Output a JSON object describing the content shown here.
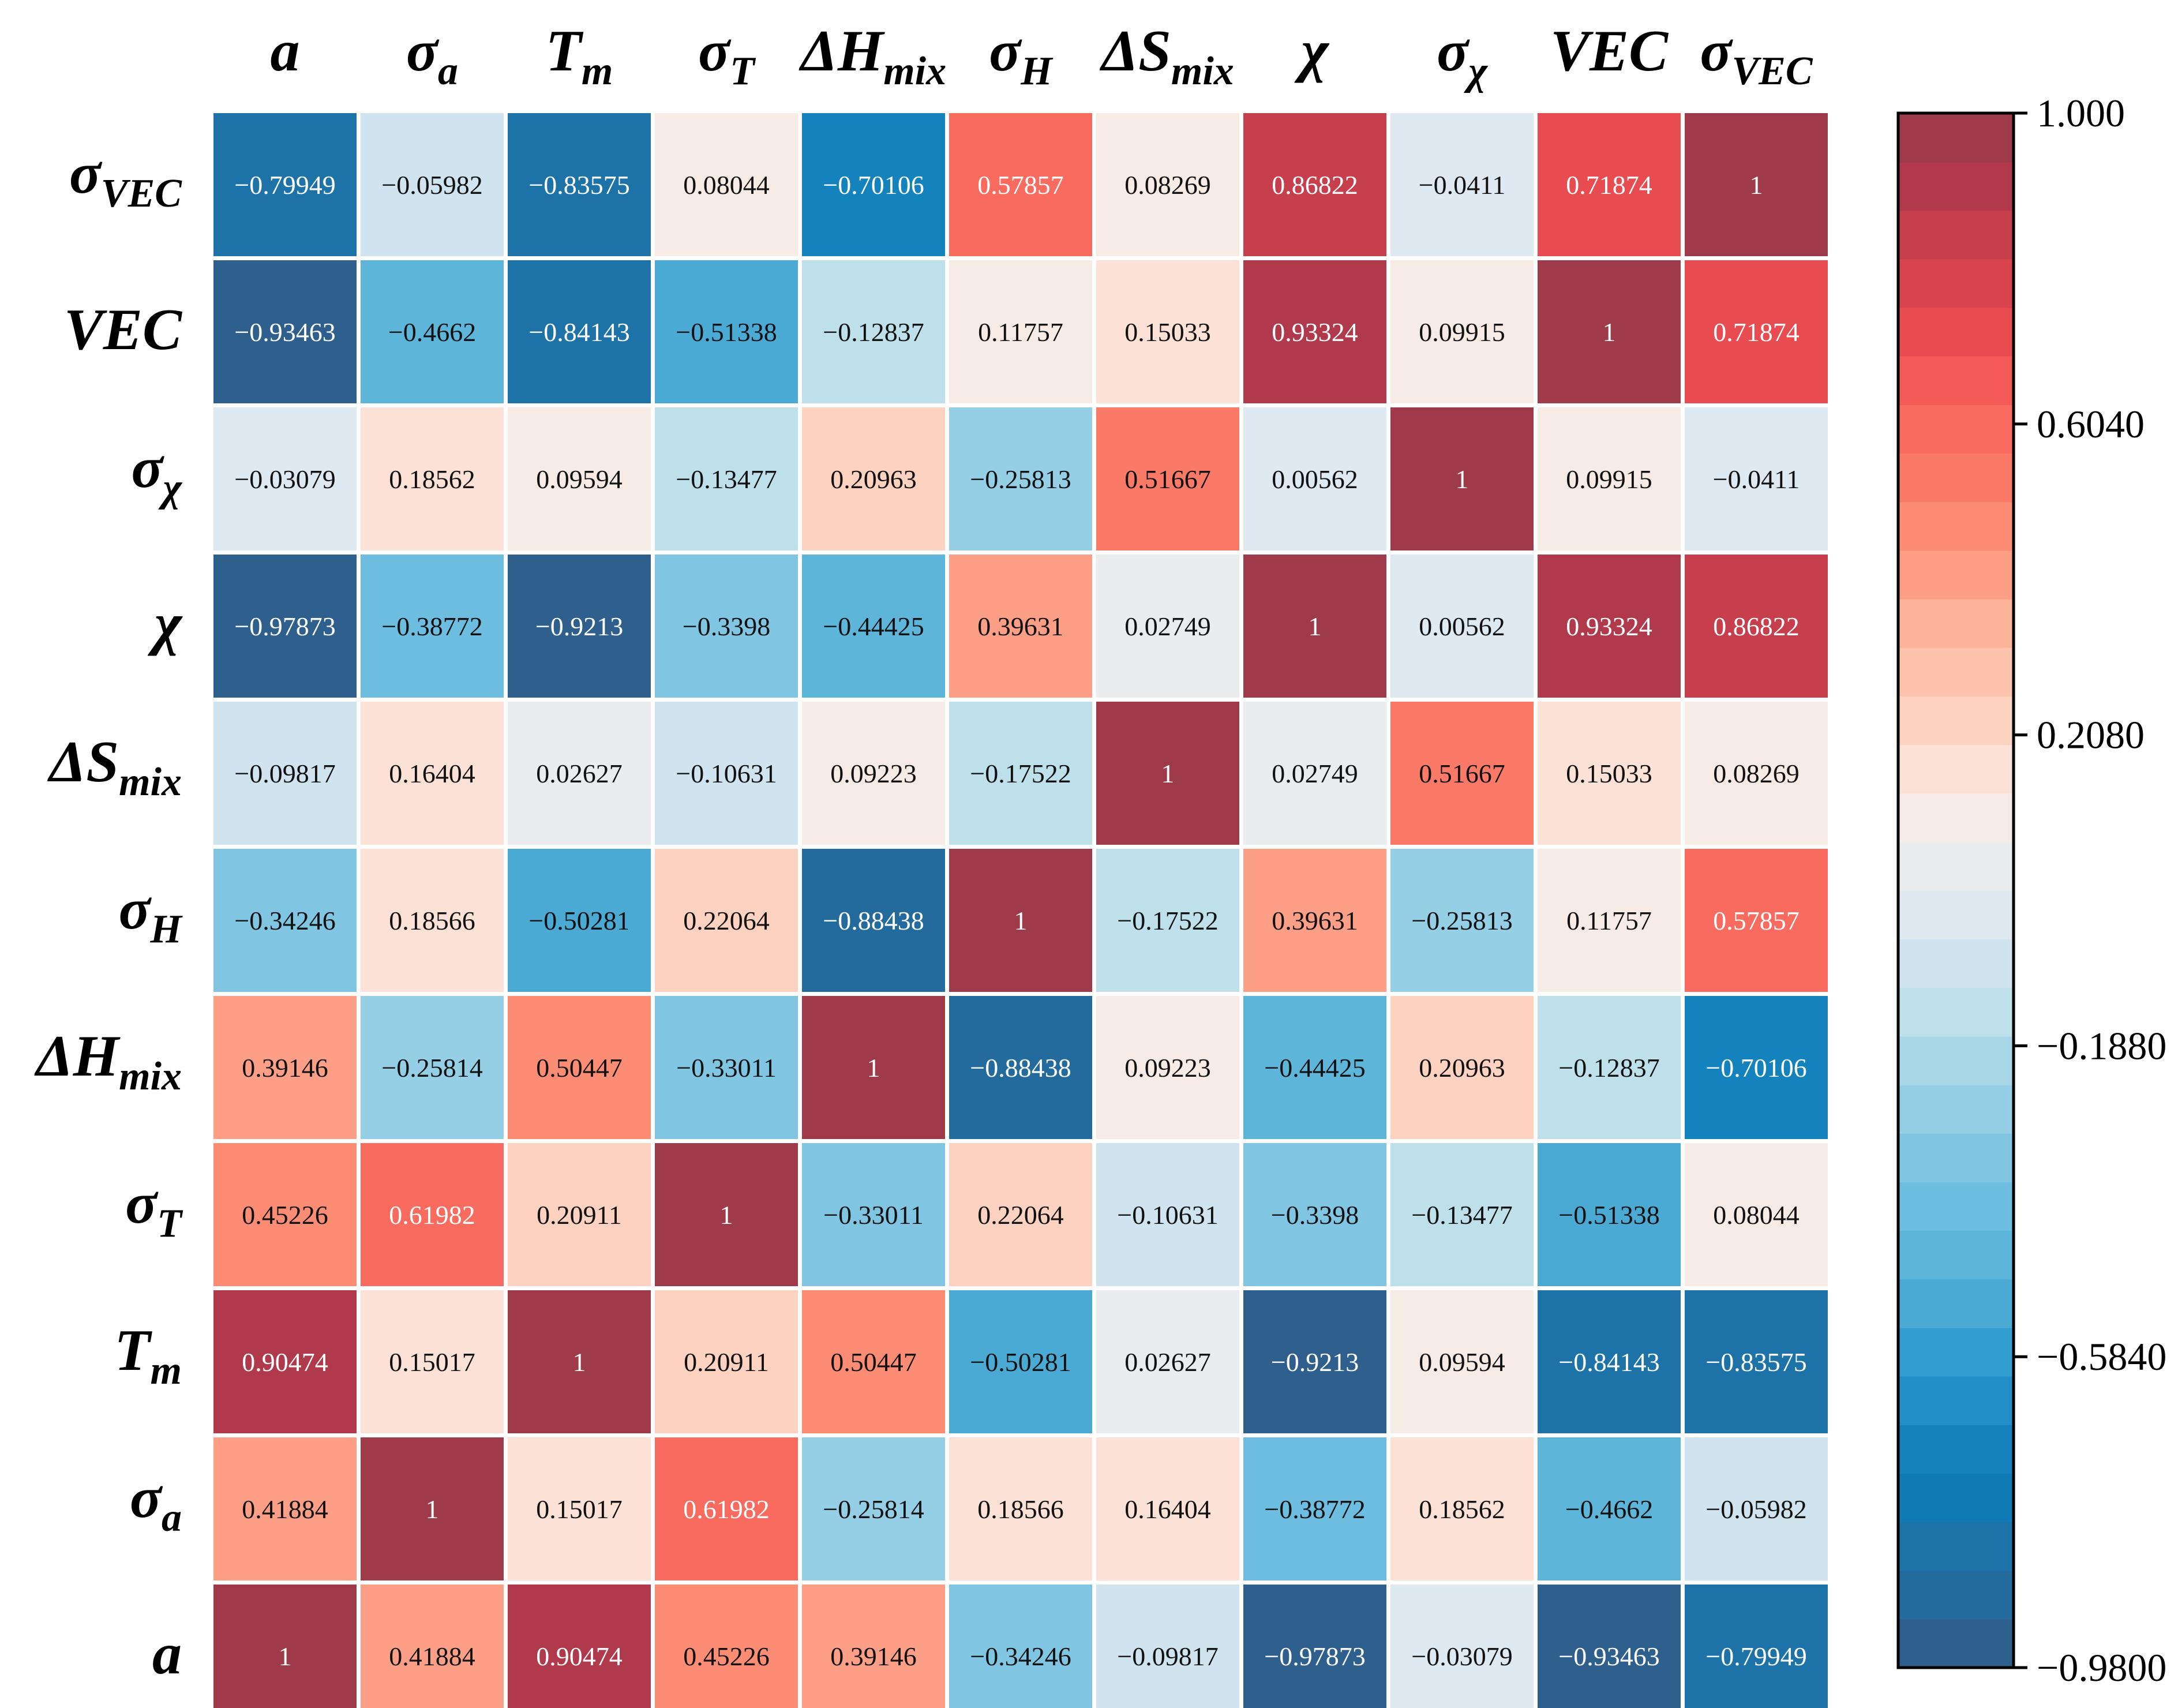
{
  "chart_data": {
    "type": "heatmap",
    "title": "",
    "labels": [
      {
        "base": "a",
        "sub": ""
      },
      {
        "base": "σ",
        "sub": "a"
      },
      {
        "base": "T",
        "sub": "m"
      },
      {
        "base": "σ",
        "sub": "T"
      },
      {
        "base": "ΔH",
        "sub": "mix"
      },
      {
        "base": "σ",
        "sub": "H"
      },
      {
        "base": "ΔS",
        "sub": "mix"
      },
      {
        "base": "χ",
        "sub": ""
      },
      {
        "base": "σ",
        "sub": "χ"
      },
      {
        "base": "VEC",
        "sub": ""
      },
      {
        "base": "σ",
        "sub": "VEC"
      }
    ],
    "row_order": "bottom-to-top",
    "matrix_text": [
      [
        "1",
        "0.41884",
        "0.90474",
        "0.45226",
        "0.39146",
        "−0.34246",
        "−0.09817",
        "−0.97873",
        "−0.03079",
        "−0.93463",
        "−0.79949"
      ],
      [
        "0.41884",
        "1",
        "0.15017",
        "0.61982",
        "−0.25814",
        "0.18566",
        "0.16404",
        "−0.38772",
        "0.18562",
        "−0.4662",
        "−0.05982"
      ],
      [
        "0.90474",
        "0.15017",
        "1",
        "0.20911",
        "0.50447",
        "−0.50281",
        "0.02627",
        "−0.9213",
        "0.09594",
        "−0.84143",
        "−0.83575"
      ],
      [
        "0.45226",
        "0.61982",
        "0.20911",
        "1",
        "−0.33011",
        "0.22064",
        "−0.10631",
        "−0.3398",
        "−0.13477",
        "−0.51338",
        "0.08044"
      ],
      [
        "0.39146",
        "−0.25814",
        "0.50447",
        "−0.33011",
        "1",
        "−0.88438",
        "0.09223",
        "−0.44425",
        "0.20963",
        "−0.12837",
        "−0.70106"
      ],
      [
        "−0.34246",
        "0.18566",
        "−0.50281",
        "0.22064",
        "−0.88438",
        "1",
        "−0.17522",
        "0.39631",
        "−0.25813",
        "0.11757",
        "0.57857"
      ],
      [
        "−0.09817",
        "0.16404",
        "0.02627",
        "−0.10631",
        "0.09223",
        "−0.17522",
        "1",
        "0.02749",
        "0.51667",
        "0.15033",
        "0.08269"
      ],
      [
        "−0.97873",
        "−0.38772",
        "−0.9213",
        "−0.3398",
        "−0.44425",
        "0.39631",
        "0.02749",
        "1",
        "0.00562",
        "0.93324",
        "0.86822"
      ],
      [
        "−0.03079",
        "0.18562",
        "0.09594",
        "−0.13477",
        "0.20963",
        "−0.25813",
        "0.51667",
        "0.00562",
        "1",
        "0.09915",
        "−0.0411"
      ],
      [
        "−0.93463",
        "−0.4662",
        "−0.84143",
        "−0.51338",
        "−0.12837",
        "0.11757",
        "0.15033",
        "0.93324",
        "0.09915",
        "1",
        "0.71874"
      ],
      [
        "−0.79949",
        "−0.05982",
        "−0.83575",
        "0.08044",
        "−0.70106",
        "0.57857",
        "0.08269",
        "0.86822",
        "−0.0411",
        "0.71874",
        "1"
      ]
    ],
    "colorbar": {
      "vmin": -0.98,
      "vmax": 1.0,
      "ticks": [
        1.0,
        0.604,
        0.208,
        -0.188,
        -0.584,
        -0.98
      ],
      "tick_labels": [
        "1.000",
        "0.6040",
        "0.2080",
        "−0.1880",
        "−0.5840",
        "−0.9800"
      ],
      "colors": [
        "#2f5f8d",
        "#236b9c",
        "#1d73a8",
        "#0f7bb5",
        "#1482bd",
        "#2190c8",
        "#329ed0",
        "#4aaad4",
        "#5db6da",
        "#6cbde0",
        "#80c6e2",
        "#95cfe6",
        "#a9d7e7",
        "#bee0ea",
        "#d0e4ef",
        "#dfe9f1",
        "#eaecee",
        "#f7ebe6",
        "#fbe1d6",
        "#fdd2c0",
        "#fdc3ac",
        "#fdb39a",
        "#fd9f86",
        "#fc8d74",
        "#fb7a67",
        "#f96a5f",
        "#f45b58",
        "#e84c51",
        "#d8434e",
        "#c73f4d",
        "#b03a4b",
        "#9e3a4a"
      ]
    }
  }
}
